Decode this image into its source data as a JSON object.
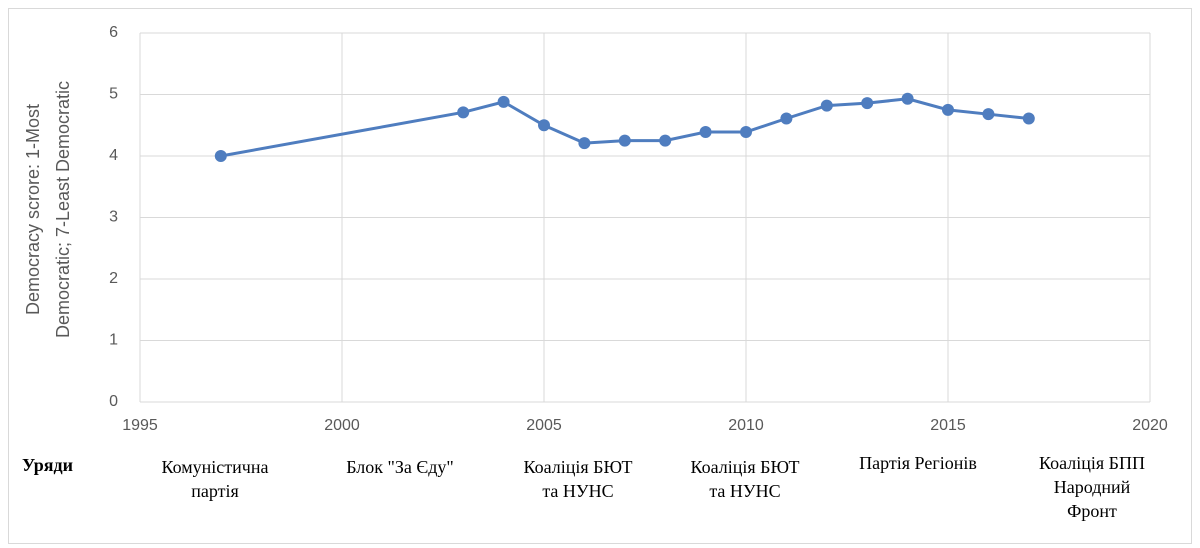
{
  "chart_data": {
    "type": "line",
    "ylabel": [
      "Democracy scrore: 1-Most",
      "Democratic; 7-Least Democratic"
    ],
    "series": [
      {
        "color": "#4f7dbf",
        "x": [
          1997,
          2003,
          2004,
          2005,
          2006,
          2007,
          2008,
          2009,
          2010,
          2011,
          2012,
          2013,
          2014,
          2015,
          2016,
          2017
        ],
        "values": [
          4.0,
          4.71,
          4.88,
          4.5,
          4.21,
          4.25,
          4.25,
          4.39,
          4.39,
          4.61,
          4.82,
          4.86,
          4.93,
          4.75,
          4.68,
          4.61
        ]
      }
    ],
    "xlim": [
      1995,
      2020
    ],
    "xticks": [
      1995,
      2000,
      2005,
      2010,
      2015,
      2020
    ],
    "ylim": [
      0,
      6
    ],
    "yticks": [
      0,
      1,
      2,
      3,
      4,
      5,
      6
    ],
    "grid": true,
    "row_label": "Уряди",
    "government_labels": [
      [
        "Комуністична",
        "партія"
      ],
      [
        "Блок \"За Єду\""
      ],
      [
        "Коаліція БЮТ",
        "та НУНС"
      ],
      [
        "Коаліція БЮТ",
        "та НУНС"
      ],
      [
        "Партія Регіонів"
      ],
      [
        "Коаліція БПП",
        "Народний",
        "Фронт"
      ]
    ]
  }
}
